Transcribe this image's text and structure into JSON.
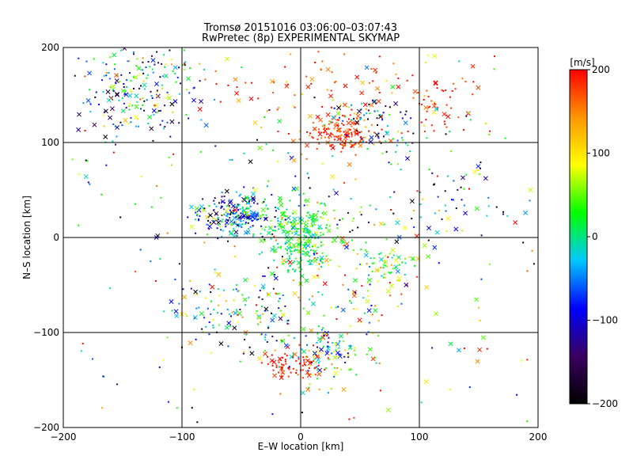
{
  "chart_data": {
    "type": "scatter",
    "title_line1": "Tromsø 20151016 03:06:00–03:07:43",
    "title_line2": "RwPretec (8p) EXPERIMENTAL SKYMAP",
    "xlabel": "E–W location [km]",
    "ylabel": "N–S location [km]",
    "xlim": [
      -200,
      200
    ],
    "ylim": [
      -200,
      200
    ],
    "xticks": [
      -200,
      -100,
      0,
      100,
      200
    ],
    "yticks": [
      -200,
      -100,
      0,
      100,
      200
    ],
    "grid_lines": [
      -100,
      0,
      100
    ],
    "colorbar": {
      "unit_label": "[m/s]",
      "range": [
        -200,
        200
      ],
      "ticks": [
        200,
        100,
        0,
        -100,
        -200
      ],
      "colors": [
        "#000000",
        "#3a0060",
        "#0000ff",
        "#00c8ff",
        "#00ff00",
        "#ffff00",
        "#ff9600",
        "#ff0000"
      ]
    },
    "clusters": [
      {
        "x": -130,
        "y": 170,
        "spread": [
          22,
          25
        ],
        "n": 150,
        "velocity": -20,
        "vspread": 170
      },
      {
        "x": -55,
        "y": 25,
        "spread": [
          16,
          12
        ],
        "n": 230,
        "velocity": -60,
        "vspread": 110
      },
      {
        "x": 0,
        "y": 0,
        "spread": [
          14,
          20
        ],
        "n": 260,
        "velocity": 20,
        "vspread": 50
      },
      {
        "x": 35,
        "y": 110,
        "spread": [
          14,
          10
        ],
        "n": 150,
        "velocity": 180,
        "vspread": 40
      },
      {
        "x": 60,
        "y": 125,
        "spread": [
          18,
          12
        ],
        "n": 70,
        "velocity": -80,
        "vspread": 150
      },
      {
        "x": 30,
        "y": 155,
        "spread": [
          55,
          22
        ],
        "n": 80,
        "velocity": 170,
        "vspread": 60
      },
      {
        "x": 115,
        "y": 140,
        "spread": [
          15,
          20
        ],
        "n": 45,
        "velocity": 190,
        "vspread": 30
      },
      {
        "x": 20,
        "y": -120,
        "spread": [
          15,
          15
        ],
        "n": 100,
        "velocity": 10,
        "vspread": 160
      },
      {
        "x": -5,
        "y": -135,
        "spread": [
          12,
          8
        ],
        "n": 70,
        "velocity": 190,
        "vspread": 30
      },
      {
        "x": 75,
        "y": -30,
        "spread": [
          10,
          10
        ],
        "n": 50,
        "velocity": 40,
        "vspread": 70
      },
      {
        "x": -55,
        "y": -80,
        "spread": [
          25,
          20
        ],
        "n": 110,
        "velocity": -40,
        "vspread": 170
      },
      {
        "x": 40,
        "y": -55,
        "spread": [
          30,
          40
        ],
        "n": 100,
        "velocity": 100,
        "vspread": 130
      },
      {
        "x": 110,
        "y": 50,
        "spread": [
          45,
          35
        ],
        "n": 80,
        "velocity": -30,
        "vspread": 190
      },
      {
        "x": -150,
        "y": 140,
        "spread": [
          25,
          25
        ],
        "n": 80,
        "velocity": -40,
        "vspread": 170
      },
      {
        "x": 0,
        "y": 0,
        "spread": [
          120,
          110
        ],
        "n": 380,
        "velocity": 20,
        "vspread": 200
      }
    ]
  }
}
